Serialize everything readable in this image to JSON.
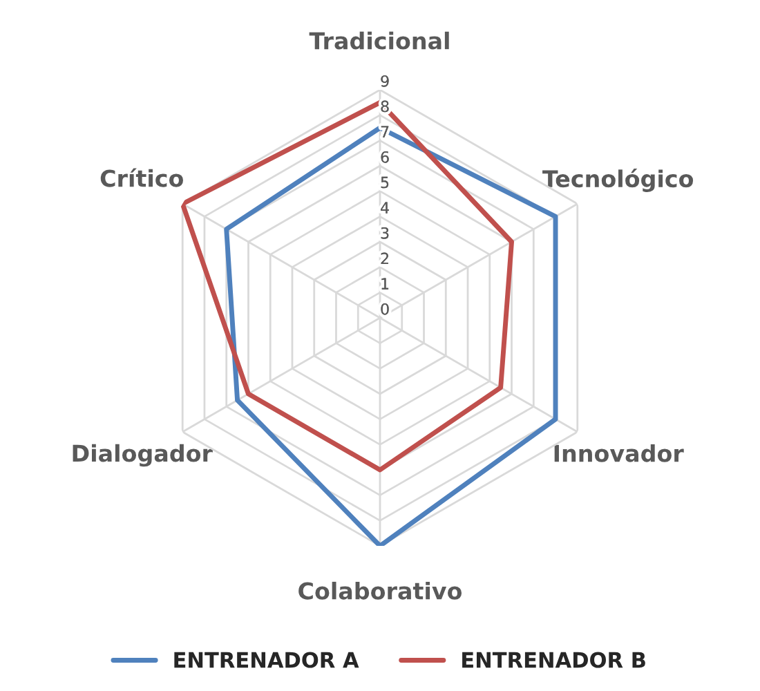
{
  "chart_data": {
    "type": "radar",
    "categories": [
      "Tradicional",
      "Tecnológico",
      "Innovador",
      "Colaborativo",
      "Dialogador",
      "Crítico"
    ],
    "series": [
      {
        "name": "ENTRENADOR A",
        "color": "#4f81bd",
        "values": [
          7.5,
          8,
          8,
          9,
          6.5,
          7
        ]
      },
      {
        "name": "ENTRENADOR B",
        "color": "#c0504d",
        "values": [
          8.5,
          6,
          5.5,
          6,
          6,
          9
        ]
      }
    ],
    "ylim": [
      0,
      9
    ],
    "yticks": [
      0,
      1,
      2,
      3,
      4,
      5,
      6,
      7,
      8,
      9
    ],
    "grid": true,
    "legend": "bottom",
    "marker": "none",
    "line_style": "solid"
  }
}
